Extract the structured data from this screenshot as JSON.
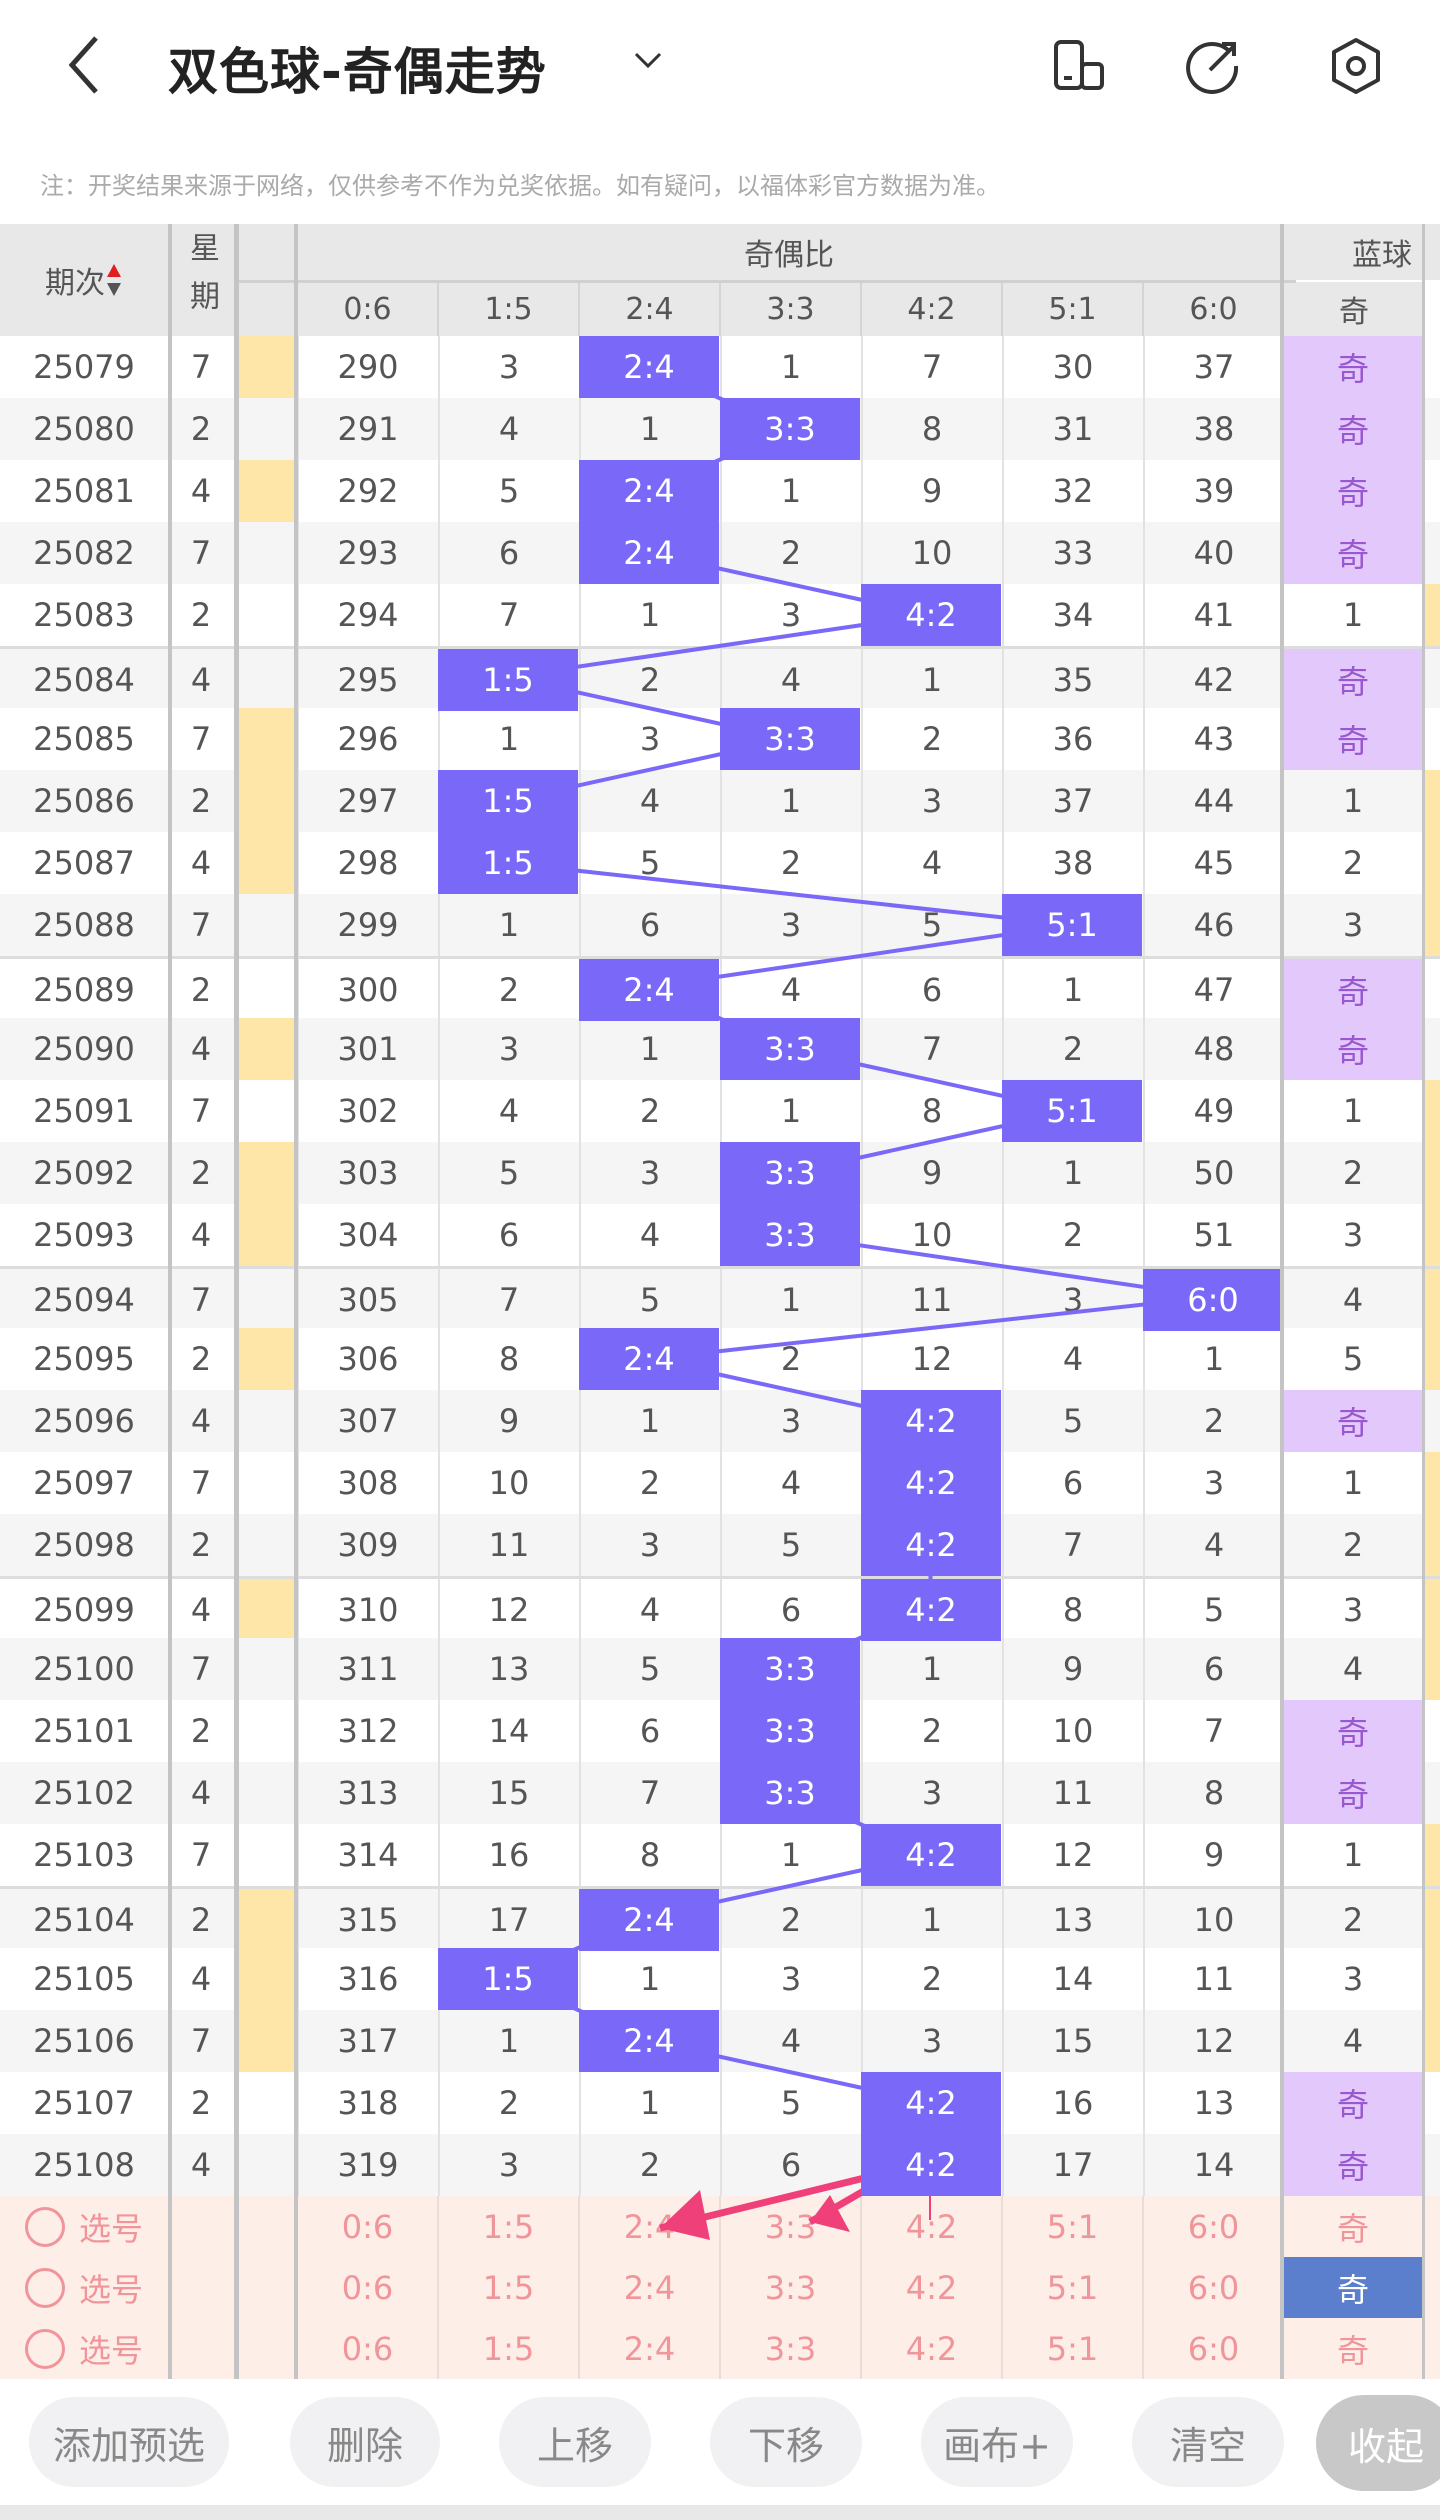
{
  "header": {
    "title": "双色球-奇偶走势",
    "back_icon": "back-arrow-icon",
    "icons": [
      "phone-layout-icon",
      "share-icon",
      "settings-icon"
    ]
  },
  "note": "注：开奖结果来源于网络，仅供参考不作为兑奖依据。如有疑问，以福体彩官方数据为准。",
  "table": {
    "col_issue": "期次",
    "col_week": "星期",
    "group_ratio": "奇偶比",
    "group_blue": "蓝球",
    "ratios": [
      "0:6",
      "1:5",
      "2:4",
      "3:3",
      "4:2",
      "5:1",
      "6:0"
    ],
    "blue_col": "奇",
    "rows": [
      {
        "issue": "25079",
        "week": "7",
        "y": true,
        "vals": [
          "290",
          "3",
          "2:4",
          "1",
          "7",
          "30",
          "37"
        ],
        "hl": 2,
        "blue": "奇"
      },
      {
        "issue": "25080",
        "week": "2",
        "y": false,
        "vals": [
          "291",
          "4",
          "1",
          "3:3",
          "8",
          "31",
          "38"
        ],
        "hl": 3,
        "blue": "奇"
      },
      {
        "issue": "25081",
        "week": "4",
        "y": true,
        "vals": [
          "292",
          "5",
          "2:4",
          "1",
          "9",
          "32",
          "39"
        ],
        "hl": 2,
        "blue": "奇"
      },
      {
        "issue": "25082",
        "week": "7",
        "y": false,
        "vals": [
          "293",
          "6",
          "2:4",
          "2",
          "10",
          "33",
          "40"
        ],
        "hl": 2,
        "blue": "奇"
      },
      {
        "issue": "25083",
        "week": "2",
        "y": false,
        "vals": [
          "294",
          "7",
          "1",
          "3",
          "4:2",
          "34",
          "41"
        ],
        "hl": 4,
        "blue": "1"
      },
      {
        "issue": "25084",
        "week": "4",
        "y": false,
        "vals": [
          "295",
          "1:5",
          "2",
          "4",
          "1",
          "35",
          "42"
        ],
        "hl": 1,
        "blue": "奇"
      },
      {
        "issue": "25085",
        "week": "7",
        "y": true,
        "vals": [
          "296",
          "1",
          "3",
          "3:3",
          "2",
          "36",
          "43"
        ],
        "hl": 3,
        "blue": "奇"
      },
      {
        "issue": "25086",
        "week": "2",
        "y": true,
        "vals": [
          "297",
          "1:5",
          "4",
          "1",
          "3",
          "37",
          "44"
        ],
        "hl": 1,
        "blue": "1"
      },
      {
        "issue": "25087",
        "week": "4",
        "y": true,
        "vals": [
          "298",
          "1:5",
          "5",
          "2",
          "4",
          "38",
          "45"
        ],
        "hl": 1,
        "blue": "2"
      },
      {
        "issue": "25088",
        "week": "7",
        "y": false,
        "vals": [
          "299",
          "1",
          "6",
          "3",
          "5",
          "5:1",
          "46"
        ],
        "hl": 5,
        "blue": "3"
      },
      {
        "issue": "25089",
        "week": "2",
        "y": false,
        "vals": [
          "300",
          "2",
          "2:4",
          "4",
          "6",
          "1",
          "47"
        ],
        "hl": 2,
        "blue": "奇"
      },
      {
        "issue": "25090",
        "week": "4",
        "y": true,
        "vals": [
          "301",
          "3",
          "1",
          "3:3",
          "7",
          "2",
          "48"
        ],
        "hl": 3,
        "blue": "奇"
      },
      {
        "issue": "25091",
        "week": "7",
        "y": false,
        "vals": [
          "302",
          "4",
          "2",
          "1",
          "8",
          "5:1",
          "49"
        ],
        "hl": 5,
        "blue": "1"
      },
      {
        "issue": "25092",
        "week": "2",
        "y": true,
        "vals": [
          "303",
          "5",
          "3",
          "3:3",
          "9",
          "1",
          "50"
        ],
        "hl": 3,
        "blue": "2"
      },
      {
        "issue": "25093",
        "week": "4",
        "y": true,
        "vals": [
          "304",
          "6",
          "4",
          "3:3",
          "10",
          "2",
          "51"
        ],
        "hl": 3,
        "blue": "3"
      },
      {
        "issue": "25094",
        "week": "7",
        "y": false,
        "vals": [
          "305",
          "7",
          "5",
          "1",
          "11",
          "3",
          "6:0"
        ],
        "hl": 6,
        "blue": "4"
      },
      {
        "issue": "25095",
        "week": "2",
        "y": true,
        "vals": [
          "306",
          "8",
          "2:4",
          "2",
          "12",
          "4",
          "1"
        ],
        "hl": 2,
        "blue": "5"
      },
      {
        "issue": "25096",
        "week": "4",
        "y": false,
        "vals": [
          "307",
          "9",
          "1",
          "3",
          "4:2",
          "5",
          "2"
        ],
        "hl": 4,
        "blue": "奇"
      },
      {
        "issue": "25097",
        "week": "7",
        "y": false,
        "vals": [
          "308",
          "10",
          "2",
          "4",
          "4:2",
          "6",
          "3"
        ],
        "hl": 4,
        "blue": "1"
      },
      {
        "issue": "25098",
        "week": "2",
        "y": false,
        "vals": [
          "309",
          "11",
          "3",
          "5",
          "4:2",
          "7",
          "4"
        ],
        "hl": 4,
        "blue": "2"
      },
      {
        "issue": "25099",
        "week": "4",
        "y": true,
        "vals": [
          "310",
          "12",
          "4",
          "6",
          "4:2",
          "8",
          "5"
        ],
        "hl": 4,
        "blue": "3"
      },
      {
        "issue": "25100",
        "week": "7",
        "y": false,
        "vals": [
          "311",
          "13",
          "5",
          "3:3",
          "1",
          "9",
          "6"
        ],
        "hl": 3,
        "blue": "4"
      },
      {
        "issue": "25101",
        "week": "2",
        "y": false,
        "vals": [
          "312",
          "14",
          "6",
          "3:3",
          "2",
          "10",
          "7"
        ],
        "hl": 3,
        "blue": "奇"
      },
      {
        "issue": "25102",
        "week": "4",
        "y": false,
        "vals": [
          "313",
          "15",
          "7",
          "3:3",
          "3",
          "11",
          "8"
        ],
        "hl": 3,
        "blue": "奇"
      },
      {
        "issue": "25103",
        "week": "7",
        "y": false,
        "vals": [
          "314",
          "16",
          "8",
          "1",
          "4:2",
          "12",
          "9"
        ],
        "hl": 4,
        "blue": "1"
      },
      {
        "issue": "25104",
        "week": "2",
        "y": true,
        "vals": [
          "315",
          "17",
          "2:4",
          "2",
          "1",
          "13",
          "10"
        ],
        "hl": 2,
        "blue": "2"
      },
      {
        "issue": "25105",
        "week": "4",
        "y": true,
        "vals": [
          "316",
          "1:5",
          "1",
          "3",
          "2",
          "14",
          "11"
        ],
        "hl": 1,
        "blue": "3"
      },
      {
        "issue": "25106",
        "week": "7",
        "y": true,
        "vals": [
          "317",
          "1",
          "2:4",
          "4",
          "3",
          "15",
          "12"
        ],
        "hl": 2,
        "blue": "4"
      },
      {
        "issue": "25107",
        "week": "2",
        "y": false,
        "vals": [
          "318",
          "2",
          "1",
          "5",
          "4:2",
          "16",
          "13"
        ],
        "hl": 4,
        "blue": "奇"
      },
      {
        "issue": "25108",
        "week": "4",
        "y": false,
        "vals": [
          "319",
          "3",
          "2",
          "6",
          "4:2",
          "17",
          "14"
        ],
        "hl": 4,
        "blue": "奇"
      }
    ]
  },
  "select_rows": {
    "label": "选号",
    "selected_blue_row": 1
  },
  "colors": {
    "highlight": "#7a68f8",
    "odd_bg": "#e2c8fb",
    "line": "#7a68f8",
    "arrow": "#f0407a",
    "selected_blue": "#5b7fcc"
  },
  "buttons": [
    "添加预选",
    "删除",
    "上移",
    "下移",
    "画布+",
    "清空",
    "收起"
  ]
}
